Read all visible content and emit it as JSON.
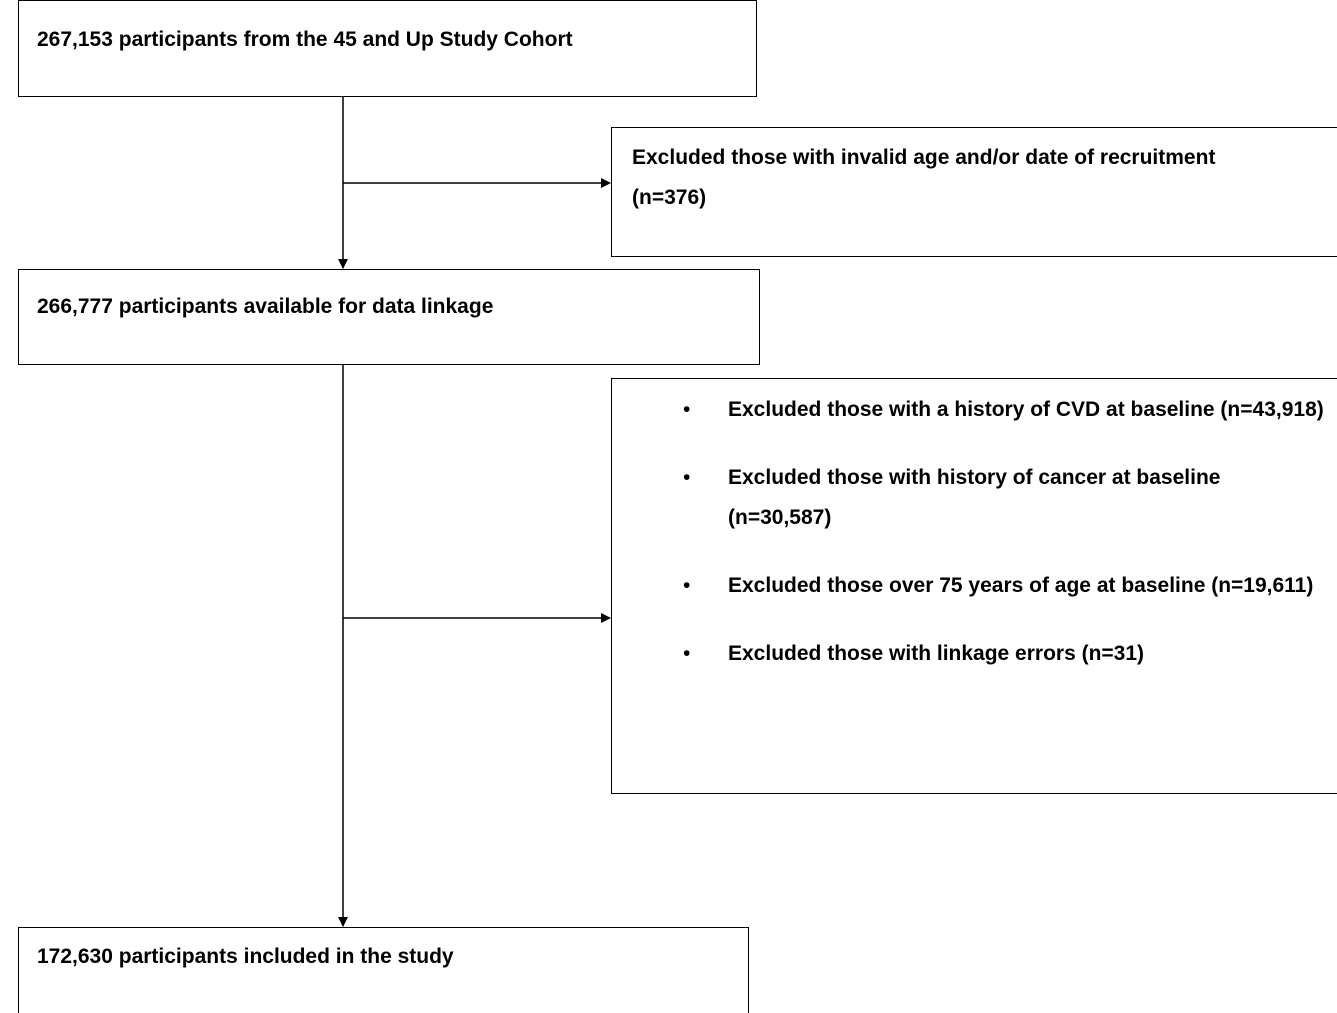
{
  "nodes": [
    {
      "label": "267,153 participants from the 45 and Up Study Cohort"
    },
    {
      "label": "266,777 participants available for data linkage"
    },
    {
      "label": "172,630 participants included in the study"
    }
  ],
  "exclusions": [
    {
      "label": "Excluded those with invalid age and/or date of recruitment (n=376)"
    },
    {
      "items": [
        "Excluded those with a history of CVD at baseline (n=43,918)",
        "Excluded those with history of cancer at baseline (n=30,587)",
        "Excluded those over 75 years of age at baseline (n=19,611)",
        "Excluded those with linkage errors (n=31)"
      ]
    }
  ]
}
